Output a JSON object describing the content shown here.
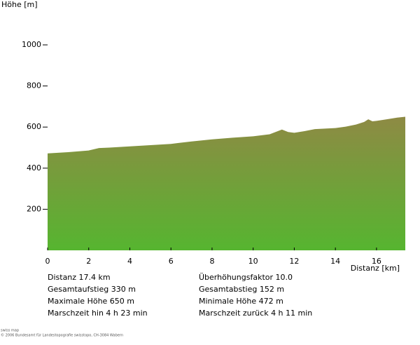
{
  "chart_data": {
    "type": "area",
    "ylabel": "Höhe [m]",
    "xlabel": "Distanz [km]",
    "x": [
      0,
      1,
      2,
      2.5,
      3,
      4,
      5,
      6,
      7,
      8,
      9,
      10,
      10.8,
      11.2,
      11.4,
      11.7,
      12,
      12.5,
      13,
      14,
      14.5,
      15,
      15.4,
      15.6,
      15.8,
      16,
      16.5,
      17,
      17.4
    ],
    "y": [
      472,
      478,
      486,
      498,
      500,
      506,
      512,
      518,
      530,
      540,
      548,
      555,
      565,
      580,
      588,
      576,
      572,
      580,
      590,
      595,
      602,
      612,
      625,
      638,
      628,
      630,
      638,
      646,
      650
    ],
    "xlim": [
      0,
      17.4
    ],
    "ylim": [
      0,
      1000
    ],
    "xticks": [
      0,
      2,
      4,
      6,
      8,
      10,
      12,
      14,
      16
    ],
    "yticks": [
      200,
      400,
      600,
      800,
      1000
    ],
    "gradient": [
      "#8e8a44",
      "#56b530"
    ]
  },
  "stats": {
    "left": [
      "Distanz 17.4 km",
      "Gesamtaufstieg  330 m",
      "Maximale Höhe  650 m",
      "Marschzeit hin  4 h 23 min"
    ],
    "right": [
      "Überhöhungsfaktor 10.0",
      "Gesamtabstieg  152 m",
      "Minimale Höhe  472 m",
      "Marschzeit zurück  4 h 11 min"
    ]
  },
  "footer": [
    "swiss map",
    "© 2006 Bundesamt für Landestopografie swisstopo, CH-3084 Wabern"
  ]
}
